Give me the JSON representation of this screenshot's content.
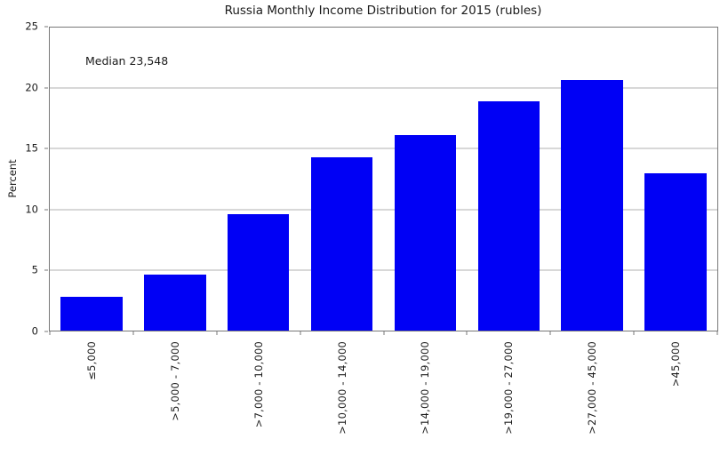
{
  "chart_data": {
    "type": "bar",
    "title": "Russia Monthly Income Distribution for 2015 (rubles)",
    "xlabel": "",
    "ylabel": "Percent",
    "categories": [
      "≤5,000",
      ">5,000 - 7,000",
      ">7,000 - 10,000",
      ">10,000 - 14,000",
      ">14,000 - 19,000",
      ">19,000 - 27,000",
      ">27,000 - 45,000",
      ">45,000"
    ],
    "values": [
      2.8,
      4.6,
      9.6,
      14.3,
      16.1,
      18.9,
      20.7,
      13.0
    ],
    "ylim": [
      0,
      25
    ],
    "yticks": [
      0,
      5,
      10,
      15,
      20,
      25
    ],
    "grid": true,
    "legend": "none",
    "annotation": "Median 23,548",
    "x_tick_style": "marks at category boundaries, labels rotated 90 degrees reading bottom-to-top"
  },
  "colors": {
    "bar": "#0000f5",
    "grid": "#b0b0b0",
    "axis": "#777777",
    "text": "#111111"
  }
}
